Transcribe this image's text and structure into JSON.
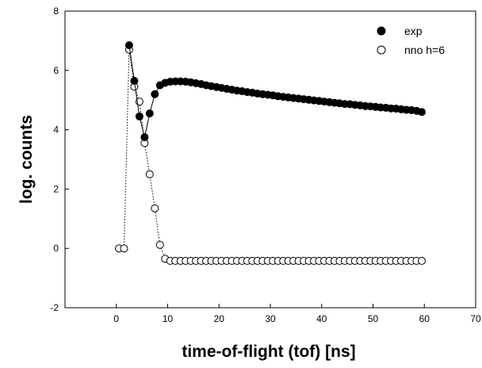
{
  "chart_data": {
    "type": "scatter",
    "xlabel": "time-of-flight (tof) [ns]",
    "ylabel": "log. counts",
    "xlim": [
      -10,
      70
    ],
    "ylim": [
      -2,
      8
    ],
    "xticks": [
      "0",
      "10",
      "20",
      "30",
      "40",
      "50",
      "60",
      "70"
    ],
    "yticks": [
      "-2",
      "0",
      "2",
      "4",
      "6",
      "8"
    ],
    "legend": "top-right",
    "grid": false,
    "series": [
      {
        "name": "exp",
        "marker": "filled-circle",
        "line": "solid",
        "color": "#000000",
        "x": [
          2.5,
          3.5,
          4.5,
          5.5,
          6.5,
          7.5,
          8.5,
          9.5,
          10.5,
          11.5,
          12.5,
          13.5,
          14.5,
          15.5,
          16.5,
          17.5,
          18.5,
          19.5,
          20.5,
          21.5,
          22.5,
          23.5,
          24.5,
          25.5,
          26.5,
          27.5,
          28.5,
          29.5,
          30.5,
          31.5,
          32.5,
          33.5,
          34.5,
          35.5,
          36.5,
          37.5,
          38.5,
          39.5,
          40.5,
          41.5,
          42.5,
          43.5,
          44.5,
          45.5,
          46.5,
          47.5,
          48.5,
          49.5,
          50.5,
          51.5,
          52.5,
          53.5,
          54.5,
          55.5,
          56.5,
          57.5,
          58.5,
          59.5
        ],
        "y": [
          6.85,
          5.65,
          4.45,
          3.75,
          4.55,
          5.2,
          5.5,
          5.58,
          5.62,
          5.63,
          5.63,
          5.62,
          5.6,
          5.57,
          5.54,
          5.5,
          5.47,
          5.44,
          5.41,
          5.38,
          5.35,
          5.32,
          5.3,
          5.27,
          5.25,
          5.22,
          5.2,
          5.18,
          5.16,
          5.13,
          5.11,
          5.09,
          5.07,
          5.05,
          5.03,
          5.01,
          4.99,
          4.97,
          4.95,
          4.93,
          4.91,
          4.89,
          4.87,
          4.86,
          4.84,
          4.82,
          4.8,
          4.79,
          4.77,
          4.75,
          4.74,
          4.72,
          4.71,
          4.69,
          4.67,
          4.66,
          4.64,
          4.6
        ]
      },
      {
        "name": "nno h=6",
        "marker": "open-circle",
        "line": "dotted",
        "color": "#000000",
        "x": [
          0.5,
          1.5,
          2.5,
          3.5,
          4.5,
          5.5,
          6.5,
          7.5,
          8.5,
          9.5,
          10.5,
          11.5,
          12.5,
          13.5,
          14.5,
          15.5,
          16.5,
          17.5,
          18.5,
          19.5,
          20.5,
          21.5,
          22.5,
          23.5,
          24.5,
          25.5,
          26.5,
          27.5,
          28.5,
          29.5,
          30.5,
          31.5,
          32.5,
          33.5,
          34.5,
          35.5,
          36.5,
          37.5,
          38.5,
          39.5,
          40.5,
          41.5,
          42.5,
          43.5,
          44.5,
          45.5,
          46.5,
          47.5,
          48.5,
          49.5,
          50.5,
          51.5,
          52.5,
          53.5,
          54.5,
          55.5,
          56.5,
          57.5,
          58.5,
          59.5
        ],
        "y": [
          0.0,
          0.0,
          6.7,
          5.45,
          4.95,
          3.55,
          2.5,
          1.35,
          0.12,
          -0.35,
          -0.42,
          -0.42,
          -0.42,
          -0.42,
          -0.42,
          -0.42,
          -0.42,
          -0.42,
          -0.42,
          -0.42,
          -0.42,
          -0.42,
          -0.42,
          -0.42,
          -0.42,
          -0.42,
          -0.42,
          -0.42,
          -0.42,
          -0.42,
          -0.42,
          -0.42,
          -0.42,
          -0.42,
          -0.42,
          -0.42,
          -0.42,
          -0.42,
          -0.42,
          -0.42,
          -0.42,
          -0.42,
          -0.42,
          -0.42,
          -0.42,
          -0.42,
          -0.42,
          -0.42,
          -0.42,
          -0.42,
          -0.42,
          -0.42,
          -0.42,
          -0.42,
          -0.42,
          -0.42,
          -0.42,
          -0.42,
          -0.42,
          -0.42
        ]
      }
    ]
  }
}
